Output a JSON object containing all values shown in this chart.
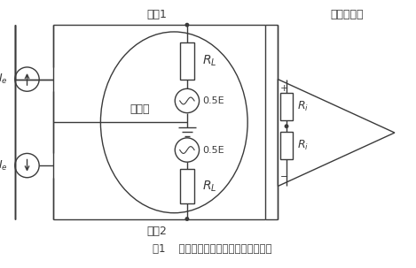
{
  "title": "图1    电流源附加激励下电极等效回路图",
  "label_dianji1": "电极1",
  "label_dianji2": "电极2",
  "label_chuanganqi": "传感器",
  "label_yibiao": "仪表放大器",
  "bg_color": "#ffffff",
  "line_color": "#3a3a3a",
  "fig_width": 4.69,
  "fig_height": 3.03,
  "dpi": 100
}
